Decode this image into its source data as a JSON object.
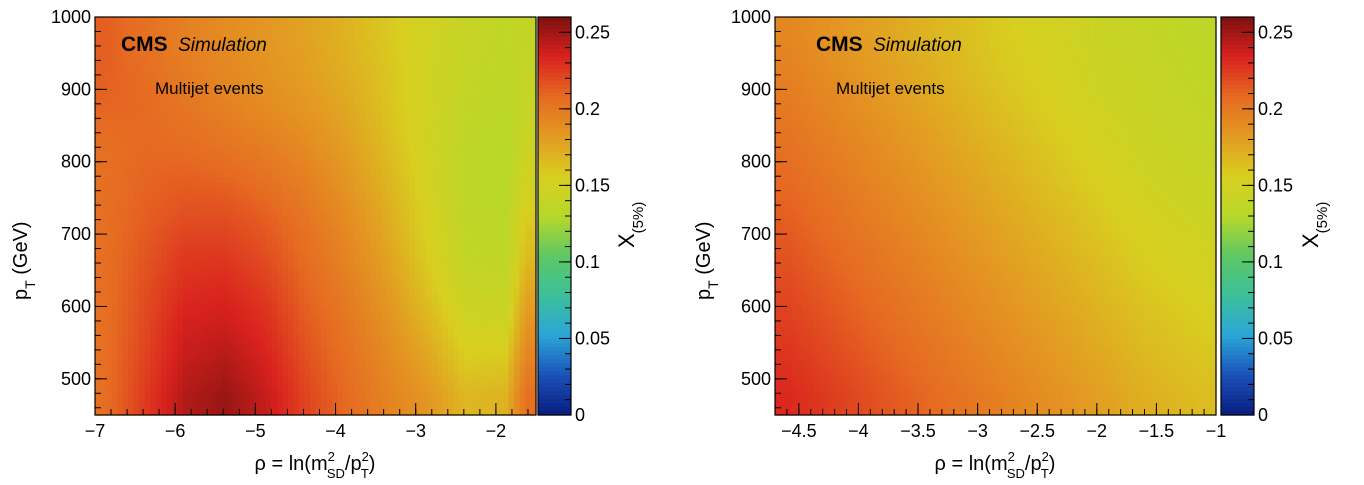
{
  "palette": [
    "#0a1c80",
    "#1a52b8",
    "#2ba6d8",
    "#3cc09a",
    "#5ec864",
    "#b8d829",
    "#d8cf20",
    "#e39a22",
    "#e66a22",
    "#d9221e",
    "#7d1010"
  ],
  "chart_data": [
    {
      "type": "heatmap",
      "title": "",
      "xlabel": {
        "main": "ρ = ln(m",
        "sup1": "2",
        "sub1": "SD",
        "mid": "/p",
        "sup2": "2",
        "sub2": "T",
        "end": ")"
      },
      "ylabel": {
        "main": "p",
        "sub": "T",
        "end": " (GeV)"
      },
      "zlabel": {
        "main": "X",
        "sub": "(5%)"
      },
      "xlim": [
        -7,
        -1.5
      ],
      "ylim": [
        450,
        1000
      ],
      "zlim": [
        0,
        0.26
      ],
      "xticks": [
        "−7",
        "−6",
        "−5",
        "−4",
        "−3",
        "−2"
      ],
      "xtick_values": [
        -7,
        -6,
        -5,
        -4,
        -3,
        -2
      ],
      "yticks": [
        "500",
        "600",
        "700",
        "800",
        "900",
        "1000"
      ],
      "ytick_values": [
        500,
        600,
        700,
        800,
        900,
        1000
      ],
      "zticks": [
        "0",
        "0.05",
        "0.1",
        "0.15",
        "0.2",
        "0.25"
      ],
      "ztick_values": [
        0,
        0.05,
        0.1,
        0.15,
        0.2,
        0.25
      ],
      "annotation": {
        "cms": "CMS",
        "simulation": "Simulation",
        "sample": "Multijet events"
      },
      "grid_x": [
        -6.875,
        -6.375,
        -5.875,
        -5.375,
        -4.875,
        -4.375,
        -3.875,
        -3.375,
        -2.875,
        -2.375,
        -1.875,
        -1.625
      ],
      "grid_y": [
        475,
        525,
        575,
        625,
        675,
        725,
        775,
        825,
        875,
        925,
        975
      ],
      "z": [
        [
          0.205,
          0.225,
          0.245,
          0.252,
          0.24,
          0.222,
          0.208,
          0.195,
          0.185,
          0.168,
          0.17,
          0.205
        ],
        [
          0.205,
          0.222,
          0.24,
          0.245,
          0.235,
          0.218,
          0.205,
          0.192,
          0.178,
          0.158,
          0.16,
          0.195
        ],
        [
          0.205,
          0.22,
          0.236,
          0.238,
          0.23,
          0.214,
          0.202,
          0.188,
          0.17,
          0.15,
          0.148,
          0.185
        ],
        [
          0.205,
          0.218,
          0.23,
          0.232,
          0.224,
          0.21,
          0.198,
          0.183,
          0.163,
          0.142,
          0.14,
          0.175
        ],
        [
          0.205,
          0.215,
          0.225,
          0.225,
          0.218,
          0.206,
          0.194,
          0.178,
          0.158,
          0.138,
          0.135,
          0.165
        ],
        [
          0.205,
          0.212,
          0.218,
          0.218,
          0.212,
          0.202,
          0.19,
          0.174,
          0.155,
          0.136,
          0.132,
          0.158
        ],
        [
          0.205,
          0.21,
          0.212,
          0.21,
          0.204,
          0.196,
          0.185,
          0.17,
          0.152,
          0.135,
          0.13,
          0.15
        ],
        [
          0.205,
          0.208,
          0.206,
          0.202,
          0.197,
          0.19,
          0.18,
          0.166,
          0.15,
          0.136,
          0.13,
          0.145
        ],
        [
          0.21,
          0.208,
          0.202,
          0.196,
          0.19,
          0.184,
          0.176,
          0.163,
          0.15,
          0.138,
          0.132,
          0.142
        ],
        [
          0.212,
          0.206,
          0.198,
          0.192,
          0.186,
          0.18,
          0.172,
          0.162,
          0.15,
          0.14,
          0.135,
          0.14
        ],
        [
          0.212,
          0.204,
          0.196,
          0.19,
          0.184,
          0.178,
          0.17,
          0.16,
          0.15,
          0.142,
          0.137,
          0.138
        ]
      ]
    },
    {
      "type": "heatmap",
      "title": "",
      "xlabel": {
        "main": "ρ = ln(m",
        "sup1": "2",
        "sub1": "SD",
        "mid": "/p",
        "sup2": "2",
        "sub2": "T",
        "end": ")"
      },
      "ylabel": {
        "main": "p",
        "sub": "T",
        "end": " (GeV)"
      },
      "zlabel": {
        "main": "X",
        "sub": "(5%)"
      },
      "xlim": [
        -4.7,
        -1
      ],
      "ylim": [
        450,
        1000
      ],
      "zlim": [
        0,
        0.26
      ],
      "xticks": [
        "−4.5",
        "−4",
        "−3.5",
        "−3",
        "−2.5",
        "−2",
        "−1.5",
        "−1"
      ],
      "xtick_values": [
        -4.5,
        -4,
        -3.5,
        -3,
        -2.5,
        -2,
        -1.5,
        -1
      ],
      "yticks": [
        "500",
        "600",
        "700",
        "800",
        "900",
        "1000"
      ],
      "ytick_values": [
        500,
        600,
        700,
        800,
        900,
        1000
      ],
      "zticks": [
        "0",
        "0.05",
        "0.1",
        "0.15",
        "0.2",
        "0.25"
      ],
      "ztick_values": [
        0,
        0.05,
        0.1,
        0.15,
        0.2,
        0.25
      ],
      "annotation": {
        "cms": "CMS",
        "simulation": "Simulation",
        "sample": "Multijet events"
      },
      "grid_x": [
        -4.6,
        -4.3,
        -4.0,
        -3.7,
        -3.4,
        -3.1,
        -2.8,
        -2.5,
        -2.2,
        -1.9,
        -1.6,
        -1.3,
        -1.1
      ],
      "grid_y": [
        475,
        525,
        575,
        625,
        675,
        725,
        775,
        825,
        875,
        925,
        975
      ],
      "z": [
        [
          0.232,
          0.226,
          0.22,
          0.214,
          0.208,
          0.202,
          0.196,
          0.19,
          0.184,
          0.178,
          0.172,
          0.168,
          0.165
        ],
        [
          0.228,
          0.222,
          0.216,
          0.21,
          0.204,
          0.198,
          0.192,
          0.186,
          0.18,
          0.174,
          0.168,
          0.164,
          0.161
        ],
        [
          0.224,
          0.218,
          0.212,
          0.206,
          0.2,
          0.194,
          0.188,
          0.182,
          0.176,
          0.17,
          0.164,
          0.16,
          0.157
        ],
        [
          0.22,
          0.214,
          0.208,
          0.202,
          0.196,
          0.19,
          0.184,
          0.178,
          0.172,
          0.166,
          0.16,
          0.156,
          0.153
        ],
        [
          0.216,
          0.21,
          0.204,
          0.198,
          0.192,
          0.186,
          0.18,
          0.174,
          0.168,
          0.162,
          0.156,
          0.152,
          0.149
        ],
        [
          0.212,
          0.206,
          0.2,
          0.194,
          0.188,
          0.182,
          0.176,
          0.17,
          0.164,
          0.158,
          0.152,
          0.148,
          0.145
        ],
        [
          0.208,
          0.202,
          0.196,
          0.19,
          0.184,
          0.178,
          0.172,
          0.166,
          0.16,
          0.154,
          0.148,
          0.145,
          0.142
        ],
        [
          0.204,
          0.198,
          0.192,
          0.186,
          0.18,
          0.174,
          0.168,
          0.162,
          0.156,
          0.15,
          0.145,
          0.142,
          0.14
        ],
        [
          0.2,
          0.194,
          0.188,
          0.182,
          0.176,
          0.17,
          0.164,
          0.158,
          0.152,
          0.147,
          0.143,
          0.14,
          0.138
        ],
        [
          0.196,
          0.19,
          0.184,
          0.178,
          0.172,
          0.166,
          0.16,
          0.155,
          0.15,
          0.145,
          0.141,
          0.138,
          0.136
        ],
        [
          0.193,
          0.187,
          0.181,
          0.175,
          0.169,
          0.164,
          0.158,
          0.153,
          0.148,
          0.143,
          0.139,
          0.136,
          0.134
        ]
      ]
    }
  ]
}
